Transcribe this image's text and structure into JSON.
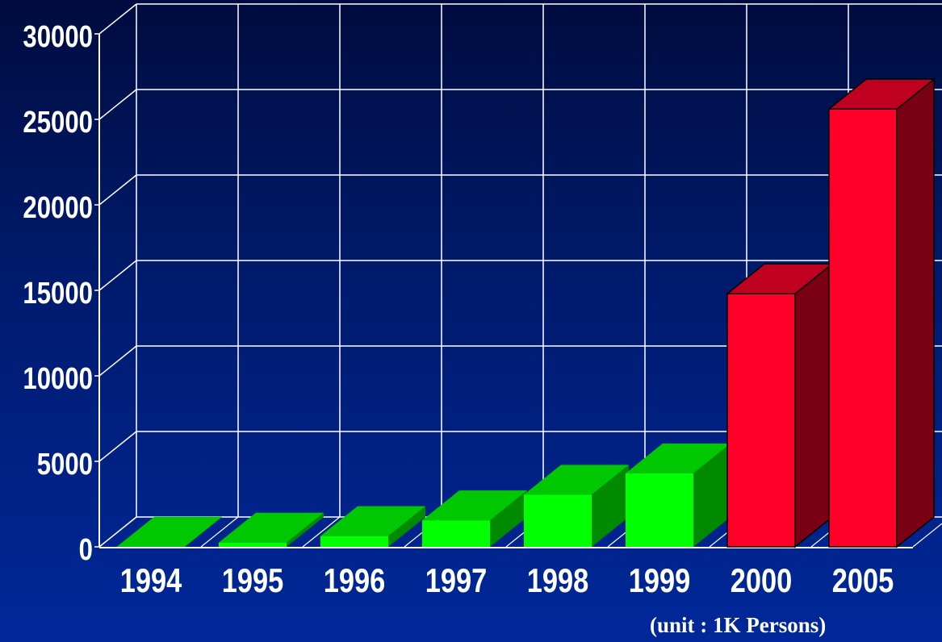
{
  "chart_data": {
    "type": "bar",
    "categories": [
      "1994",
      "1995",
      "1996",
      "1997",
      "1998",
      "1999",
      "2000",
      "2005"
    ],
    "values": [
      10,
      250,
      630,
      1550,
      3050,
      4300,
      14800,
      25600
    ],
    "ylim": [
      0,
      30000
    ],
    "yticks": [
      0,
      5000,
      10000,
      15000,
      20000,
      25000,
      30000
    ],
    "ytick_labels": [
      "0",
      "5000",
      "10000",
      "15000",
      "20000",
      "25000",
      "30000"
    ],
    "grid": true,
    "bar_colors": [
      "#00ff00",
      "#00ff00",
      "#00ff00",
      "#00ff00",
      "#00ff00",
      "#00ff00",
      "#ff0028",
      "#ff0028"
    ],
    "top_colors": [
      "#00c800",
      "#00c800",
      "#00c800",
      "#00c800",
      "#00c800",
      "#00c800",
      "#c00020",
      "#c00020"
    ],
    "side_colors": [
      "#008a00",
      "#008a00",
      "#008a00",
      "#008a00",
      "#008a00",
      "#008a00",
      "#7a0014",
      "#7a0014"
    ]
  },
  "unit_note": "(unit : 1K Persons)"
}
